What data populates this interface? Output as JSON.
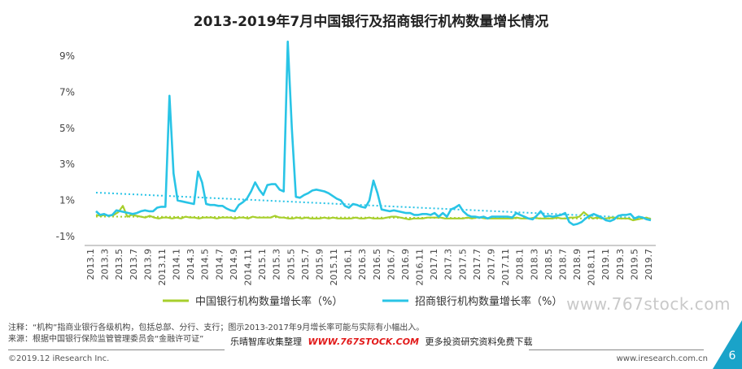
{
  "title": "2013-2019年7月中国银行及招商银行机构数量增长情况",
  "notes": {
    "line1": "注释：“机构”指商业银行各级机构，包括总部、分行、支行；图示2013-2017年9月增长率可能与实际有小幅出入。",
    "line2": "来源：根据中国银行保险监管管理委员会“金融许可证”"
  },
  "watermark": "www.767stock.com",
  "promo": {
    "prefix": "乐晴智库收集整理",
    "site": "WWW.767STOCK.COM",
    "suffix": "更多投资研究资料免费下载"
  },
  "footer": {
    "copyright": "©2019.12 iResearch Inc.",
    "url": "www.iresearch.com.cn",
    "page": "6"
  },
  "colors": {
    "boc": "#a7cf2c",
    "cmb": "#29c4e6",
    "corner": "#1aa3c9"
  },
  "chart_data": {
    "type": "line",
    "xlabel": "",
    "ylabel": "",
    "ylim": [
      -1,
      10
    ],
    "y_ticks": [
      "9%",
      "7%",
      "5%",
      "3%",
      "1%",
      "-1%"
    ],
    "y_tick_values": [
      9,
      7,
      5,
      3,
      1,
      -1
    ],
    "x_tick_labels": [
      "2013.1",
      "2013.3",
      "2013.5",
      "2013.7",
      "2013.9",
      "2013.11",
      "2014.1",
      "2014.3",
      "2014.5",
      "2014.7",
      "2014.9",
      "2014.11",
      "2015.1",
      "2015.3",
      "2015.5",
      "2015.7",
      "2015.9",
      "2015.11",
      "2016.1",
      "2016.3",
      "2016.5",
      "2016.7",
      "2016.9",
      "2016.11",
      "2017.1",
      "2017.3",
      "2017.5",
      "2017.7",
      "2017.9",
      "2017.11",
      "2018.1",
      "2018.3",
      "2018.5",
      "2018.7",
      "2018.9",
      "2018.11",
      "2019.1",
      "2019.3",
      "2019.5",
      "2019.7"
    ],
    "x_tick_every": 2,
    "grid": false,
    "trendline": "dotted linear",
    "legend_position": "bottom",
    "series": [
      {
        "name": "中国银行机构数量增长率（%）",
        "color": "#a7cf2c",
        "values": [
          0.2,
          0.15,
          0.2,
          0.15,
          0.2,
          0.35,
          0.7,
          0.1,
          0.2,
          0.15,
          0.1,
          0.05,
          0.15,
          0.05,
          0.0,
          0.05,
          0.05,
          0.0,
          0.05,
          0.0,
          0.1,
          0.05,
          0.05,
          0.0,
          0.05,
          0.05,
          0.05,
          0.0,
          0.05,
          0.05,
          0.05,
          0.0,
          0.05,
          0.05,
          0.0,
          0.1,
          0.05,
          0.05,
          0.05,
          0.05,
          0.15,
          0.05,
          0.05,
          0.0,
          0.0,
          0.05,
          0.0,
          0.05,
          0.0,
          0.0,
          0.0,
          0.05,
          0.0,
          0.05,
          0.0,
          0.0,
          0.0,
          0.0,
          0.05,
          0.0,
          0.0,
          0.05,
          0.0,
          0.0,
          0.0,
          0.05,
          0.1,
          0.1,
          0.05,
          0.0,
          -0.05,
          0.0,
          0.0,
          0.0,
          0.05,
          0.05,
          0.05,
          0.05,
          0.0,
          0.0,
          0.0,
          0.0,
          0.0,
          0.05,
          0.0,
          0.05,
          0.05,
          0.0,
          0.0,
          0.0,
          0.0,
          0.0,
          0.0,
          0.0,
          0.05,
          0.0,
          0.0,
          0.0,
          0.05,
          0.0,
          0.0,
          0.0,
          0.0,
          0.05,
          0.0,
          0.0,
          0.05,
          0.05,
          0.1,
          0.35,
          0.15,
          0.0,
          0.05,
          0.0,
          0.0,
          0.05,
          0.05,
          0.0,
          0.0,
          0.0,
          -0.1,
          -0.05,
          0.0,
          0.05,
          -0.05
        ]
      },
      {
        "name": "招商银行机构数量增长率（%）",
        "color": "#29c4e6",
        "values": [
          0.4,
          0.2,
          0.25,
          0.15,
          0.2,
          0.45,
          0.4,
          0.35,
          0.3,
          0.25,
          0.3,
          0.4,
          0.45,
          0.4,
          0.4,
          0.6,
          0.65,
          0.65,
          6.8,
          2.5,
          1.0,
          0.95,
          0.9,
          0.85,
          0.8,
          2.6,
          2.0,
          0.8,
          0.75,
          0.75,
          0.7,
          0.7,
          0.55,
          0.45,
          0.4,
          0.75,
          0.9,
          1.1,
          1.5,
          2.0,
          1.6,
          1.3,
          1.85,
          1.9,
          1.9,
          1.6,
          1.5,
          9.8,
          5.0,
          1.2,
          1.15,
          1.3,
          1.4,
          1.55,
          1.6,
          1.55,
          1.5,
          1.4,
          1.25,
          1.1,
          1.0,
          0.7,
          0.6,
          0.8,
          0.75,
          0.65,
          0.6,
          1.0,
          2.1,
          1.4,
          0.5,
          0.45,
          0.4,
          0.45,
          0.4,
          0.35,
          0.3,
          0.3,
          0.2,
          0.2,
          0.25,
          0.25,
          0.2,
          0.3,
          0.1,
          0.3,
          0.1,
          0.5,
          0.6,
          0.75,
          0.4,
          0.2,
          0.1,
          0.1,
          0.05,
          0.1,
          0.0,
          0.1,
          0.1,
          0.1,
          0.1,
          0.1,
          0.05,
          0.3,
          0.2,
          0.1,
          0.0,
          -0.05,
          0.15,
          0.4,
          0.1,
          0.15,
          0.1,
          0.15,
          0.2,
          0.3,
          -0.2,
          -0.35,
          -0.3,
          -0.2,
          0.0,
          0.15,
          0.25,
          0.15,
          0.05,
          -0.1,
          -0.15,
          -0.05,
          0.15,
          0.2,
          0.2,
          0.25,
          0.0,
          0.1,
          0.05,
          -0.05,
          -0.1
        ]
      }
    ]
  }
}
